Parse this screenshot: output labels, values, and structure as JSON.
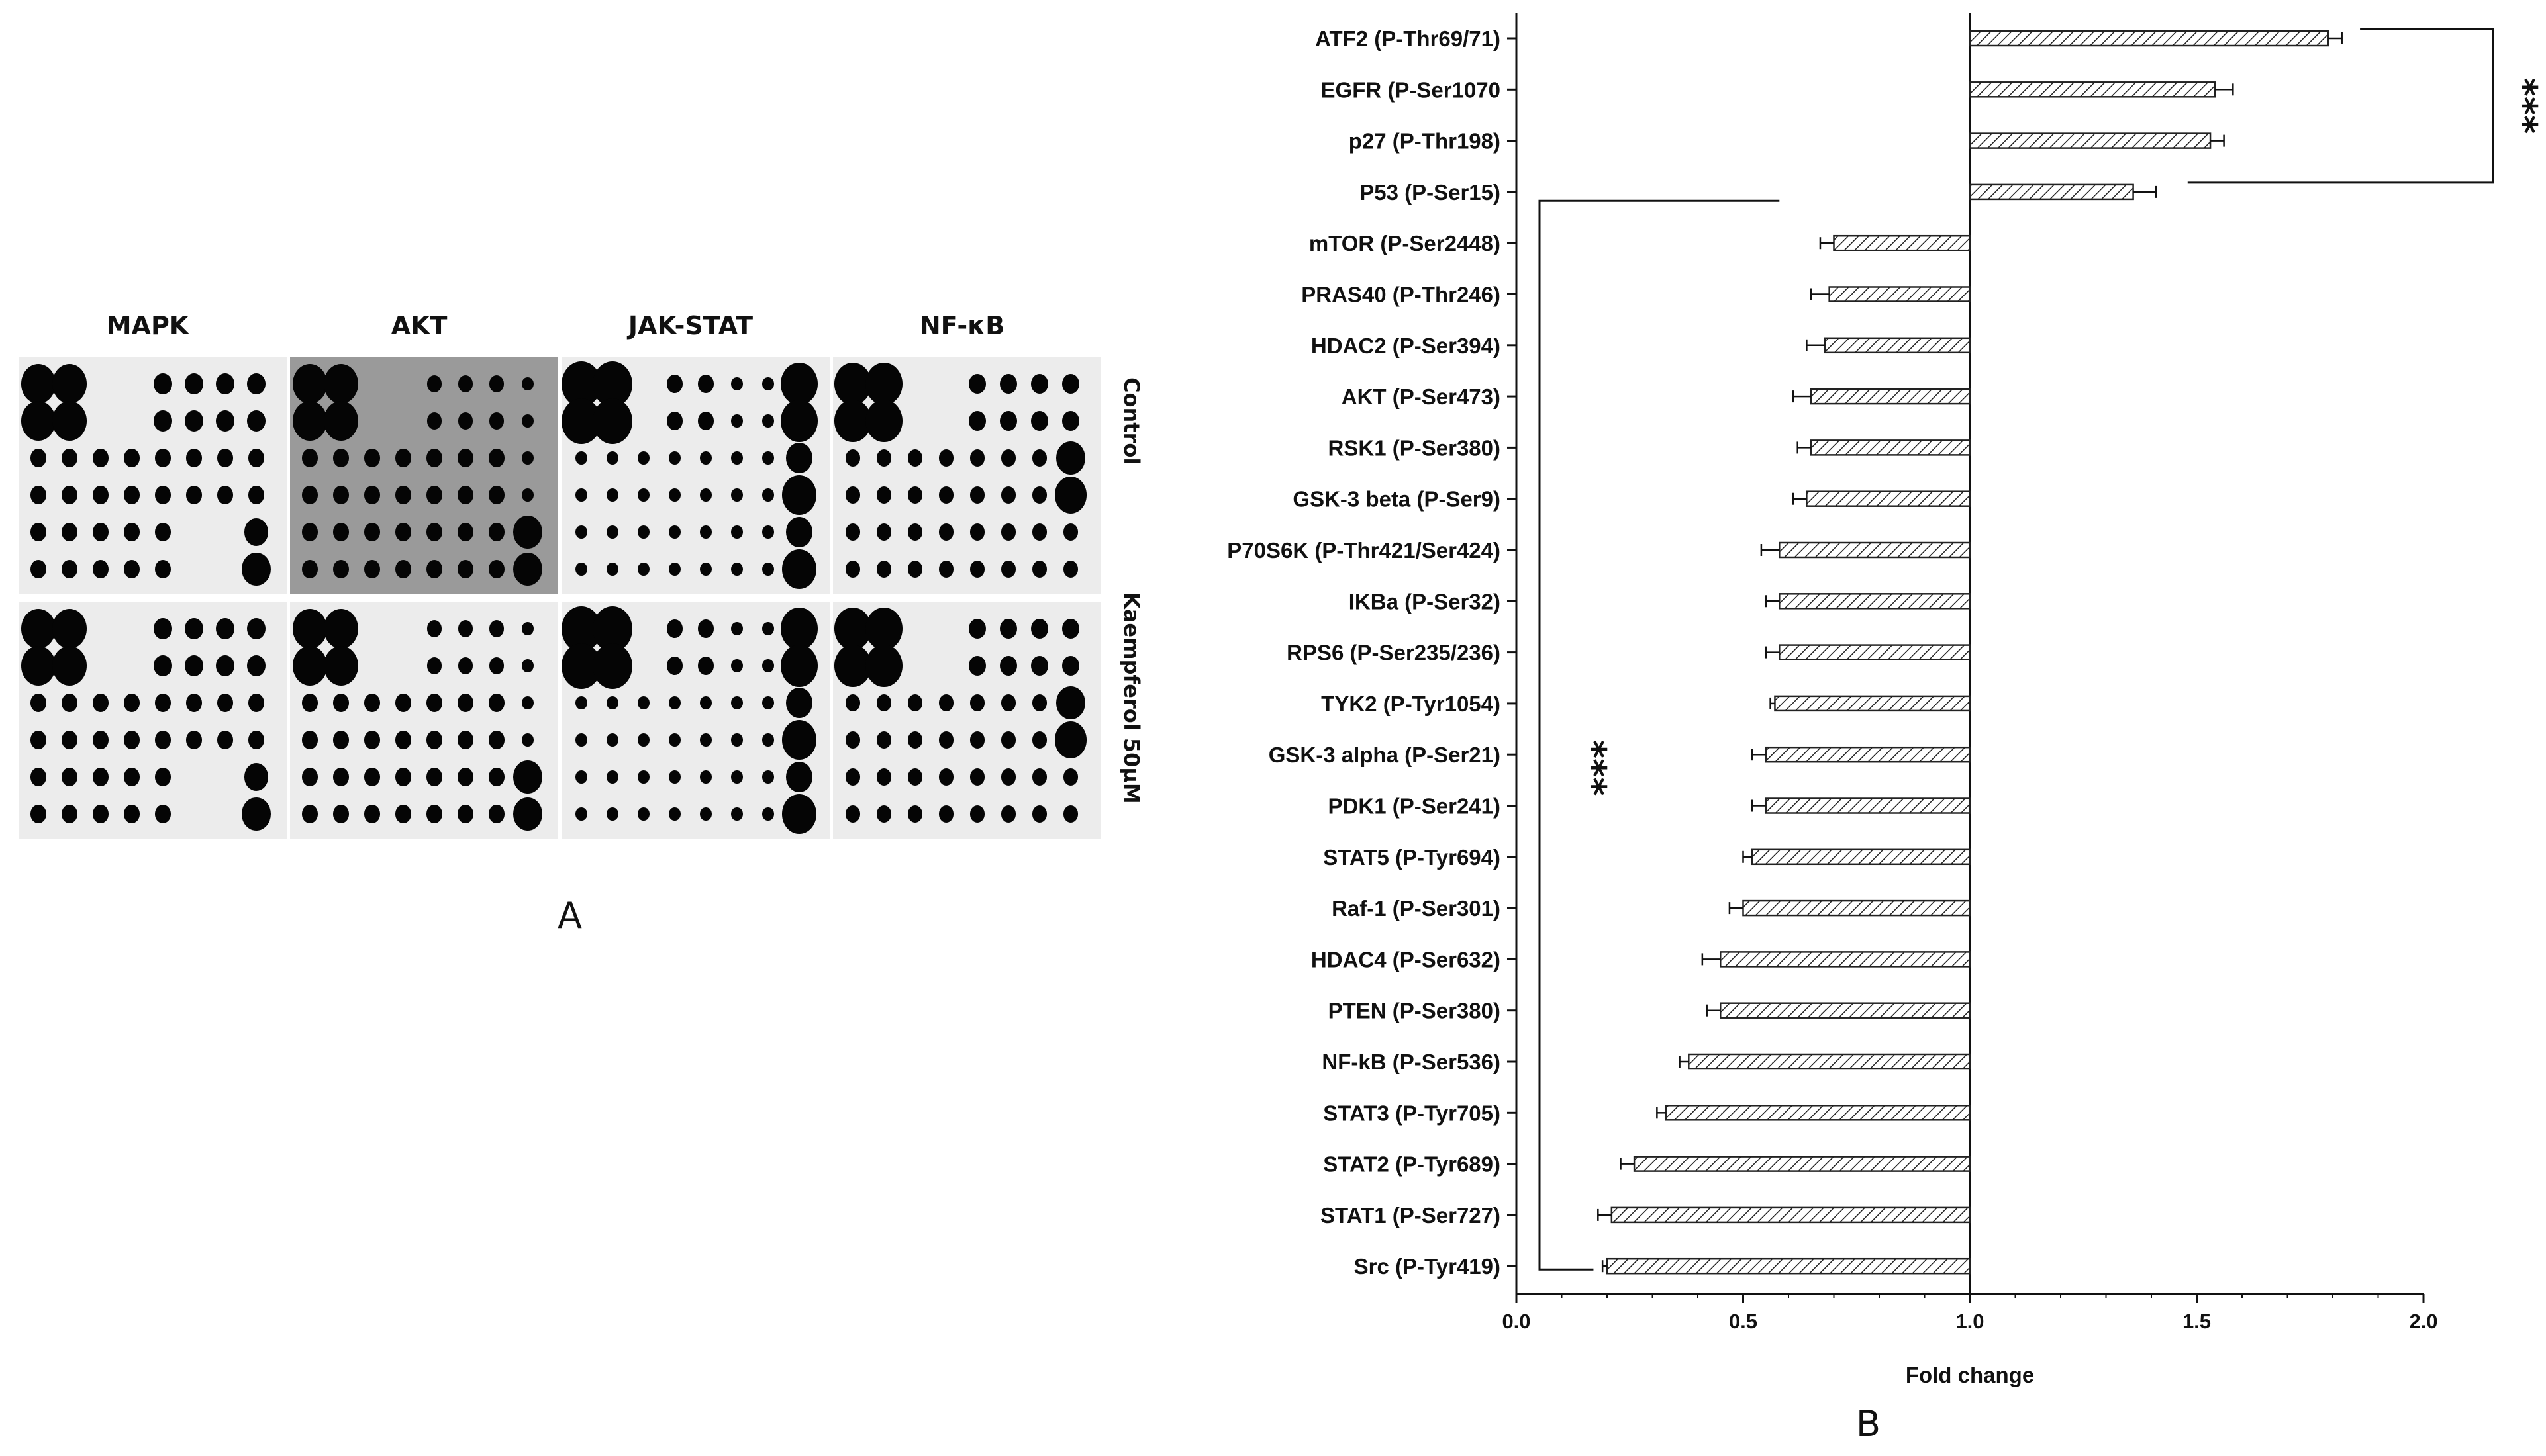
{
  "panel_a": {
    "label": "A",
    "columns": [
      "MAPK",
      "AKT",
      "JAK-STAT",
      "NF-κB"
    ],
    "rows": [
      "Control",
      "Kaempferol 50μM"
    ]
  },
  "panel_b": {
    "label": "B"
  },
  "chart_data": {
    "type": "bar",
    "orientation": "horizontal",
    "baseline": 1.0,
    "xlabel": "Fold change",
    "xlim": [
      0.0,
      2.0
    ],
    "xticks": [
      "0.0",
      "0.5",
      "1.0",
      "1.5",
      "2.0"
    ],
    "categories": [
      "ATF2 (P-Thr69/71)",
      "EGFR (P-Ser1070",
      "p27 (P-Thr198)",
      "P53 (P-Ser15)",
      "mTOR (P-Ser2448)",
      "PRAS40 (P-Thr246)",
      "HDAC2 (P-Ser394)",
      "AKT (P-Ser473)",
      "RSK1 (P-Ser380)",
      "GSK-3 beta (P-Ser9)",
      "P70S6K (P-Thr421/Ser424)",
      "IKBa (P-Ser32)",
      "RPS6 (P-Ser235/236)",
      "TYK2 (P-Tyr1054)",
      "GSK-3 alpha (P-Ser21)",
      "PDK1 (P-Ser241)",
      "STAT5 (P-Tyr694)",
      "Raf-1 (P-Ser301)",
      "HDAC4 (P-Ser632)",
      "PTEN (P-Ser380)",
      "NF-kB (P-Ser536)",
      "STAT3 (P-Tyr705)",
      "STAT2 (P-Tyr689)",
      "STAT1 (P-Ser727)",
      "Src (P-Tyr419)"
    ],
    "values": [
      1.79,
      1.54,
      1.53,
      1.36,
      0.7,
      0.69,
      0.68,
      0.65,
      0.65,
      0.64,
      0.58,
      0.58,
      0.58,
      0.57,
      0.55,
      0.55,
      0.52,
      0.5,
      0.45,
      0.45,
      0.38,
      0.33,
      0.26,
      0.21,
      0.2
    ],
    "errors": [
      0.03,
      0.04,
      0.03,
      0.05,
      0.03,
      0.04,
      0.04,
      0.04,
      0.03,
      0.03,
      0.04,
      0.03,
      0.03,
      0.01,
      0.03,
      0.03,
      0.02,
      0.03,
      0.04,
      0.03,
      0.02,
      0.02,
      0.03,
      0.03,
      0.01
    ],
    "annotations": [
      {
        "text": "***",
        "group": "upregulated",
        "from": 0,
        "to": 3
      },
      {
        "text": "***",
        "group": "downregulated",
        "from": 4,
        "to": 24
      }
    ],
    "colors": {
      "bar_stroke": "#222222",
      "hatch": "#222222",
      "axis": "#111111"
    }
  }
}
